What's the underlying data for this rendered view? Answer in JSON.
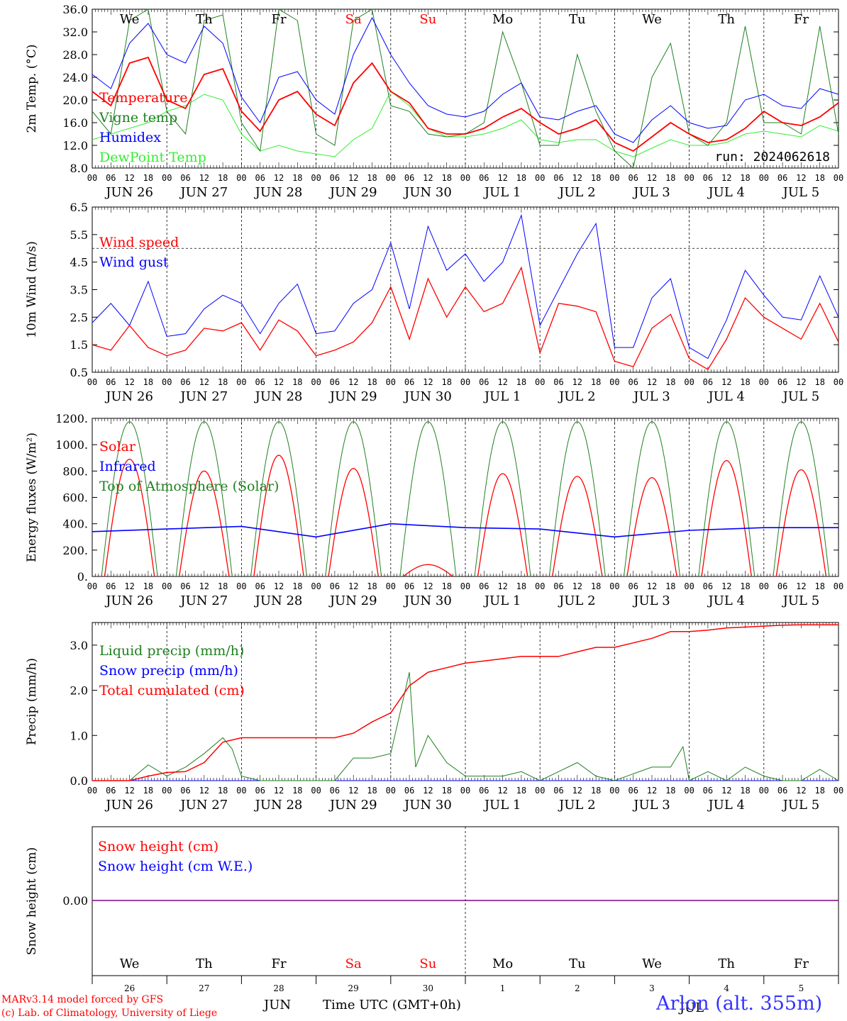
{
  "run_label": "run: 2024062618",
  "day_names": [
    {
      "label": "We",
      "color": "#000000"
    },
    {
      "label": "Th",
      "color": "#000000"
    },
    {
      "label": "Fr",
      "color": "#000000"
    },
    {
      "label": "Sa",
      "color": "#ff0000"
    },
    {
      "label": "Su",
      "color": "#ff0000"
    },
    {
      "label": "Mo",
      "color": "#000000"
    },
    {
      "label": "Tu",
      "color": "#000000"
    },
    {
      "label": "We",
      "color": "#000000"
    },
    {
      "label": "Th",
      "color": "#000000"
    },
    {
      "label": "Fr",
      "color": "#000000"
    }
  ],
  "day_dates": [
    "JUN 26",
    "JUN 27",
    "JUN 28",
    "JUN 29",
    "JUN 30",
    "JUL  1",
    "JUL  2",
    "JUL  3",
    "JUL  4",
    "JUL  5"
  ],
  "day_numbers": [
    "26",
    "27",
    "28",
    "29",
    "30",
    "1",
    "2",
    "3",
    "4",
    "5"
  ],
  "hour_ticks": [
    "00",
    "06",
    "12",
    "18"
  ],
  "hour_end": "00",
  "footer": {
    "credit1": "MARv3.14 model forced by GFS",
    "credit2": "(c) Lab. of Climatology, University of Liege",
    "station": "Arlon (alt. 355m)",
    "xlabel": "Time UTC (GMT+0h)",
    "month": "JUN",
    "month_overlap": "JUL"
  },
  "chart_data": [
    {
      "type": "line",
      "ylabel": "2m Temp. (°C)",
      "ylim": [
        8,
        36
      ],
      "yticks": [
        "8.0",
        "12.0",
        "16.0",
        "20.0",
        "24.0",
        "28.0",
        "32.0",
        "36.0"
      ],
      "x_hours_from": "2024-06-26 00 UTC",
      "series": [
        {
          "name": "Temperature",
          "color": "#ff0000",
          "x": [
            0,
            6,
            12,
            18,
            24,
            30,
            36,
            42,
            48,
            54,
            60,
            66,
            72,
            78,
            84,
            90,
            96,
            102,
            108,
            114,
            120,
            126,
            132,
            138,
            144,
            150,
            156,
            162,
            168,
            174,
            180,
            186,
            192,
            198,
            204,
            210,
            216,
            222,
            228,
            234,
            240
          ],
          "values": [
            21.5,
            19,
            26.5,
            27.5,
            20,
            18.5,
            24.5,
            25.5,
            18,
            14.5,
            20,
            21.5,
            17.5,
            15.5,
            23,
            26.5,
            21.5,
            19.5,
            15,
            14,
            14,
            15,
            17,
            18.5,
            16,
            14,
            15,
            16.5,
            12.5,
            11,
            13.5,
            16,
            14,
            12.5,
            13,
            15,
            18,
            16,
            15.5,
            17,
            19.5
          ]
        },
        {
          "name": "Vigne temp",
          "color": "#208020",
          "x": [
            0,
            6,
            12,
            18,
            24,
            30,
            36,
            42,
            48,
            54,
            60,
            66,
            72,
            78,
            84,
            90,
            96,
            102,
            108,
            114,
            120,
            126,
            132,
            138,
            144,
            150,
            156,
            162,
            168,
            174,
            180,
            186,
            192,
            198,
            204,
            210,
            216,
            222,
            228,
            234,
            240
          ],
          "values": [
            18,
            14,
            34,
            36,
            18,
            14,
            34,
            35,
            16,
            11,
            36,
            34,
            14,
            12,
            34,
            36,
            19,
            18,
            14,
            13.5,
            14,
            16,
            32,
            23,
            12,
            12,
            28,
            18,
            11,
            8,
            24,
            30,
            14,
            12,
            16,
            33,
            16,
            16,
            14,
            33,
            14
          ]
        },
        {
          "name": "Humidex",
          "color": "#0000ff",
          "x": [
            0,
            6,
            12,
            18,
            24,
            30,
            36,
            42,
            48,
            54,
            60,
            66,
            72,
            78,
            84,
            90,
            96,
            102,
            108,
            114,
            120,
            126,
            132,
            138,
            144,
            150,
            156,
            162,
            168,
            174,
            180,
            186,
            192,
            198,
            204,
            210,
            216,
            222,
            228,
            234,
            240
          ],
          "values": [
            24.5,
            22,
            30,
            33.5,
            28,
            26.5,
            33,
            30,
            20.5,
            16,
            24,
            25,
            20,
            17.5,
            28,
            34.5,
            28,
            23,
            19,
            17.5,
            17,
            18,
            21,
            23,
            17,
            16.5,
            18,
            19,
            14,
            12.5,
            16.5,
            19,
            16,
            15,
            15.5,
            20,
            21,
            19,
            18.5,
            22,
            21
          ]
        },
        {
          "name": "DewPoint Temp",
          "color": "#33ee33",
          "x": [
            0,
            6,
            12,
            18,
            24,
            30,
            36,
            42,
            48,
            54,
            60,
            66,
            72,
            78,
            84,
            90,
            96,
            102,
            108,
            114,
            120,
            126,
            132,
            138,
            144,
            150,
            156,
            162,
            168,
            174,
            180,
            186,
            192,
            198,
            204,
            210,
            216,
            222,
            228,
            234,
            240
          ],
          "values": [
            13,
            14,
            15,
            16,
            18,
            19,
            21,
            20,
            14,
            11,
            12,
            11,
            10.5,
            10,
            13,
            15,
            21.5,
            19,
            15,
            13.5,
            13.5,
            14,
            15,
            16.5,
            13,
            12.5,
            13,
            13,
            11,
            10,
            11.5,
            13,
            12,
            12,
            12.5,
            14,
            14.5,
            14,
            13.5,
            15.5,
            14.5
          ]
        }
      ]
    },
    {
      "type": "line",
      "ylabel": "10m Wind (m/s)",
      "ylim": [
        0.5,
        6.5
      ],
      "yticks": [
        "0.5",
        "1.5",
        "2.5",
        "3.5",
        "4.5",
        "5.5",
        "6.5"
      ],
      "reference_line": 5.0,
      "series": [
        {
          "name": "Wind speed",
          "color": "#ff0000",
          "x": [
            0,
            6,
            12,
            18,
            24,
            30,
            36,
            42,
            48,
            54,
            60,
            66,
            72,
            78,
            84,
            90,
            96,
            102,
            108,
            114,
            120,
            126,
            132,
            138,
            144,
            150,
            156,
            162,
            168,
            174,
            180,
            186,
            192,
            198,
            204,
            210,
            216,
            222,
            228,
            234,
            240
          ],
          "values": [
            1.5,
            1.3,
            2.2,
            1.4,
            1.1,
            1.3,
            2.1,
            2.0,
            2.3,
            1.3,
            2.4,
            2.0,
            1.1,
            1.3,
            1.6,
            2.3,
            3.6,
            1.7,
            3.9,
            2.5,
            3.6,
            2.7,
            3.0,
            4.3,
            1.2,
            3.0,
            2.9,
            2.7,
            0.9,
            0.7,
            2.1,
            2.6,
            1.0,
            0.6,
            1.7,
            3.2,
            2.5,
            2.1,
            1.7,
            3.0,
            1.6
          ]
        },
        {
          "name": "Wind gust",
          "color": "#0000ff",
          "x": [
            0,
            6,
            12,
            18,
            24,
            30,
            36,
            42,
            48,
            54,
            60,
            66,
            72,
            78,
            84,
            90,
            96,
            102,
            108,
            114,
            120,
            126,
            132,
            138,
            144,
            150,
            156,
            162,
            168,
            174,
            180,
            186,
            192,
            198,
            204,
            210,
            216,
            222,
            228,
            234,
            240
          ],
          "values": [
            2.3,
            3.0,
            2.2,
            3.8,
            1.8,
            1.9,
            2.8,
            3.3,
            3.0,
            1.9,
            3.0,
            3.7,
            1.9,
            2.0,
            3.0,
            3.5,
            5.2,
            2.8,
            5.8,
            4.2,
            4.8,
            3.8,
            4.5,
            6.2,
            2.2,
            3.5,
            4.8,
            5.9,
            1.4,
            1.4,
            3.2,
            3.9,
            1.4,
            1.0,
            2.4,
            4.2,
            3.3,
            2.5,
            2.4,
            4.0,
            2.5
          ]
        }
      ]
    },
    {
      "type": "line",
      "ylabel": "Energy fluxes (W/m²)",
      "ylim": [
        0,
        1200
      ],
      "yticks": [
        "0.",
        "200.",
        "400.",
        "600.",
        "800.",
        "1000.",
        "1200."
      ],
      "series": [
        {
          "name": "Solar",
          "color": "#ff0000",
          "peaks": [
            {
              "day": 0,
              "peak": 890
            },
            {
              "day": 1,
              "peak": 800
            },
            {
              "day": 2,
              "peak": 920
            },
            {
              "day": 3,
              "peak": 820
            },
            {
              "day": 4,
              "peak": 90
            },
            {
              "day": 5,
              "peak": 780
            },
            {
              "day": 6,
              "peak": 760
            },
            {
              "day": 7,
              "peak": 750
            },
            {
              "day": 8,
              "peak": 880
            },
            {
              "day": 9,
              "peak": 810
            }
          ]
        },
        {
          "name": "Infrared",
          "color": "#0000ff",
          "x": [
            0,
            24,
            48,
            72,
            96,
            120,
            144,
            168,
            192,
            216,
            240
          ],
          "values": [
            340,
            360,
            380,
            300,
            400,
            370,
            360,
            300,
            350,
            370,
            370
          ]
        },
        {
          "name": "Top of Atmosphere (Solar)",
          "color": "#208020",
          "peak": 1175
        }
      ]
    },
    {
      "type": "line",
      "ylabel": "Precip (mm/h)",
      "ylim": [
        0,
        3.5
      ],
      "yticks": [
        "0.0",
        "1.0",
        "2.0",
        "3.0"
      ],
      "series": [
        {
          "name": "Liquid precip (mm/h)",
          "color": "#208020",
          "x": [
            0,
            12,
            18,
            24,
            30,
            36,
            42,
            45,
            48,
            54,
            60,
            66,
            72,
            78,
            84,
            90,
            96,
            102,
            104,
            108,
            114,
            120,
            126,
            132,
            138,
            144,
            150,
            156,
            162,
            168,
            174,
            180,
            186,
            190,
            192,
            198,
            204,
            210,
            216,
            222,
            228,
            234,
            240
          ],
          "values": [
            0,
            0,
            0.35,
            0.1,
            0.3,
            0.6,
            0.95,
            0.7,
            0.1,
            0,
            0,
            0,
            0,
            0,
            0.5,
            0.5,
            0.6,
            2.4,
            0.3,
            1.0,
            0.4,
            0.1,
            0.1,
            0.1,
            0.2,
            0,
            0.2,
            0.4,
            0.1,
            0,
            0.15,
            0.3,
            0.3,
            0.75,
            0,
            0.2,
            0,
            0.3,
            0.1,
            0,
            0,
            0.25,
            0
          ]
        },
        {
          "name": "Snow precip (mm/h)",
          "color": "#0000ff",
          "x": [
            0,
            240
          ],
          "values": [
            0,
            0
          ]
        },
        {
          "name": "Total cumulated (cm)",
          "color": "#ff0000",
          "x": [
            0,
            12,
            18,
            24,
            30,
            36,
            42,
            48,
            54,
            60,
            66,
            72,
            78,
            84,
            90,
            96,
            102,
            108,
            114,
            120,
            126,
            132,
            138,
            144,
            150,
            156,
            162,
            168,
            174,
            180,
            186,
            192,
            198,
            204,
            210,
            216,
            222,
            228,
            234,
            240
          ],
          "values": [
            0,
            0,
            0.1,
            0.18,
            0.2,
            0.4,
            0.85,
            0.95,
            0.95,
            0.95,
            0.95,
            0.95,
            0.95,
            1.05,
            1.3,
            1.5,
            2.1,
            2.4,
            2.5,
            2.6,
            2.65,
            2.7,
            2.75,
            2.75,
            2.75,
            2.85,
            2.95,
            2.95,
            3.05,
            3.15,
            3.3,
            3.3,
            3.33,
            3.38,
            3.4,
            3.42,
            3.44,
            3.45,
            3.45,
            3.45
          ]
        }
      ]
    },
    {
      "type": "line",
      "ylabel": "Snow height (cm)",
      "yticks": [
        "0.00"
      ],
      "series": [
        {
          "name": "Snow height (cm)",
          "color": "#ff0000",
          "x": [
            0,
            240
          ],
          "values": [
            0,
            0
          ]
        },
        {
          "name": "Snow height (cm W.E.)",
          "color": "#0000ff",
          "x": [
            0,
            240
          ],
          "values": [
            0,
            0
          ]
        }
      ]
    }
  ]
}
